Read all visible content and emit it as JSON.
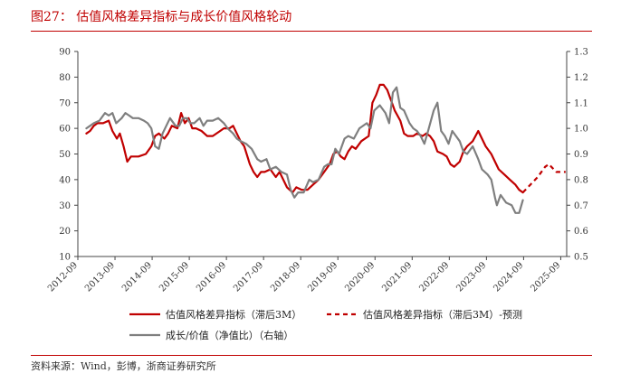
{
  "header": {
    "title": "图27：  估值风格差异指标与成长价值风格轮动"
  },
  "footer": {
    "source": "资料来源：Wind，彭博，浙商证券研究所"
  },
  "colors": {
    "red": "#c00000",
    "gray": "#7f7f7f",
    "rule": "#c00000"
  },
  "chart_data": {
    "type": "line",
    "x_unit": "year_fraction",
    "x_tick_labels": [
      "2012-09",
      "2013-09",
      "2014-09",
      "2015-09",
      "2016-09",
      "2017-09",
      "2018-09",
      "2019-09",
      "2020-09",
      "2021-09",
      "2022-09",
      "2023-09",
      "2024-09",
      "2025-09"
    ],
    "xlim": [
      2012.67,
      2025.83
    ],
    "y_left": {
      "ylim": [
        10,
        90
      ],
      "ticks": [
        "10",
        "20",
        "30",
        "40",
        "50",
        "60",
        "70",
        "80",
        "90"
      ]
    },
    "y_right": {
      "ylim": [
        0.5,
        1.3
      ],
      "ticks": [
        "0.5",
        "0.6",
        "0.7",
        "0.8",
        "0.9",
        "1.0",
        "1.1",
        "1.2",
        "1.3"
      ]
    },
    "series": [
      {
        "name": "估值风格差异指标（滞后3M）",
        "axis": "left",
        "style": "solid",
        "color": "#c00000",
        "points": [
          [
            2012.9,
            58
          ],
          [
            2013.0,
            59
          ],
          [
            2013.1,
            61
          ],
          [
            2013.2,
            62
          ],
          [
            2013.35,
            62
          ],
          [
            2013.5,
            63
          ],
          [
            2013.6,
            59
          ],
          [
            2013.72,
            56
          ],
          [
            2013.8,
            58
          ],
          [
            2013.9,
            53
          ],
          [
            2014.0,
            47
          ],
          [
            2014.1,
            49
          ],
          [
            2014.3,
            49
          ],
          [
            2014.5,
            50
          ],
          [
            2014.65,
            53
          ],
          [
            2014.75,
            57
          ],
          [
            2014.85,
            58
          ],
          [
            2015.0,
            56
          ],
          [
            2015.1,
            58
          ],
          [
            2015.2,
            61
          ],
          [
            2015.35,
            60
          ],
          [
            2015.45,
            66
          ],
          [
            2015.55,
            62
          ],
          [
            2015.65,
            64
          ],
          [
            2015.75,
            60
          ],
          [
            2015.85,
            60
          ],
          [
            2016.0,
            59
          ],
          [
            2016.15,
            57
          ],
          [
            2016.3,
            57
          ],
          [
            2016.5,
            59
          ],
          [
            2016.6,
            60
          ],
          [
            2016.75,
            60
          ],
          [
            2016.85,
            61
          ],
          [
            2016.95,
            58
          ],
          [
            2017.05,
            55
          ],
          [
            2017.15,
            53
          ],
          [
            2017.3,
            46
          ],
          [
            2017.4,
            43
          ],
          [
            2017.5,
            41
          ],
          [
            2017.6,
            43
          ],
          [
            2017.7,
            43
          ],
          [
            2017.85,
            44
          ],
          [
            2018.0,
            41
          ],
          [
            2018.1,
            43
          ],
          [
            2018.2,
            40
          ],
          [
            2018.3,
            37
          ],
          [
            2018.45,
            35
          ],
          [
            2018.55,
            37
          ],
          [
            2018.7,
            36
          ],
          [
            2018.85,
            36
          ],
          [
            2019.0,
            38
          ],
          [
            2019.15,
            40
          ],
          [
            2019.3,
            43
          ],
          [
            2019.45,
            46
          ],
          [
            2019.55,
            50
          ],
          [
            2019.65,
            51
          ],
          [
            2019.75,
            49
          ],
          [
            2019.85,
            48
          ],
          [
            2019.95,
            51
          ],
          [
            2020.05,
            53
          ],
          [
            2020.15,
            52
          ],
          [
            2020.3,
            55
          ],
          [
            2020.5,
            57
          ],
          [
            2020.6,
            70
          ],
          [
            2020.7,
            73
          ],
          [
            2020.8,
            77
          ],
          [
            2020.9,
            77
          ],
          [
            2021.0,
            75
          ],
          [
            2021.1,
            71
          ],
          [
            2021.2,
            67
          ],
          [
            2021.35,
            63
          ],
          [
            2021.45,
            58
          ],
          [
            2021.55,
            57
          ],
          [
            2021.7,
            57
          ],
          [
            2021.8,
            58
          ],
          [
            2021.95,
            57
          ],
          [
            2022.05,
            58
          ],
          [
            2022.15,
            57
          ],
          [
            2022.25,
            55
          ],
          [
            2022.35,
            51
          ],
          [
            2022.5,
            50
          ],
          [
            2022.6,
            49
          ],
          [
            2022.7,
            46
          ],
          [
            2022.8,
            45
          ],
          [
            2022.95,
            47
          ],
          [
            2023.05,
            51
          ],
          [
            2023.15,
            53
          ],
          [
            2023.3,
            55
          ],
          [
            2023.45,
            59
          ],
          [
            2023.55,
            56
          ],
          [
            2023.65,
            53
          ],
          [
            2023.8,
            50
          ],
          [
            2023.9,
            47
          ],
          [
            2024.0,
            44
          ],
          [
            2024.15,
            42
          ],
          [
            2024.3,
            40
          ],
          [
            2024.45,
            38
          ],
          [
            2024.55,
            36
          ],
          [
            2024.65,
            35
          ]
        ]
      },
      {
        "name": "估值风格差异指标（滞后3M）-预测",
        "axis": "left",
        "style": "dashed",
        "color": "#c00000",
        "points": [
          [
            2024.65,
            35
          ],
          [
            2024.85,
            38
          ],
          [
            2025.05,
            41
          ],
          [
            2025.25,
            45
          ],
          [
            2025.35,
            46
          ],
          [
            2025.55,
            43
          ],
          [
            2025.7,
            43
          ],
          [
            2025.8,
            43
          ]
        ]
      },
      {
        "name": "成长/价值（净值比）（右轴）",
        "axis": "right",
        "style": "solid",
        "color": "#7f7f7f",
        "points": [
          [
            2012.9,
            1.0
          ],
          [
            2013.0,
            1.01
          ],
          [
            2013.1,
            1.02
          ],
          [
            2013.25,
            1.03
          ],
          [
            2013.4,
            1.06
          ],
          [
            2013.5,
            1.05
          ],
          [
            2013.6,
            1.06
          ],
          [
            2013.7,
            1.02
          ],
          [
            2013.85,
            1.04
          ],
          [
            2013.95,
            1.06
          ],
          [
            2014.05,
            1.05
          ],
          [
            2014.15,
            1.04
          ],
          [
            2014.3,
            1.04
          ],
          [
            2014.45,
            1.03
          ],
          [
            2014.55,
            1.02
          ],
          [
            2014.65,
            1.0
          ],
          [
            2014.75,
            0.93
          ],
          [
            2014.85,
            0.92
          ],
          [
            2014.95,
            0.98
          ],
          [
            2015.05,
            1.01
          ],
          [
            2015.15,
            1.04
          ],
          [
            2015.3,
            1.01
          ],
          [
            2015.4,
            1.01
          ],
          [
            2015.5,
            1.04
          ],
          [
            2015.6,
            1.04
          ],
          [
            2015.7,
            1.02
          ],
          [
            2015.8,
            1.02
          ],
          [
            2015.95,
            1.04
          ],
          [
            2016.05,
            1.01
          ],
          [
            2016.15,
            1.03
          ],
          [
            2016.3,
            1.03
          ],
          [
            2016.45,
            1.04
          ],
          [
            2016.6,
            1.02
          ],
          [
            2016.7,
            1.0
          ],
          [
            2016.85,
            0.98
          ],
          [
            2016.95,
            0.96
          ],
          [
            2017.05,
            0.95
          ],
          [
            2017.2,
            0.94
          ],
          [
            2017.35,
            0.92
          ],
          [
            2017.5,
            0.88
          ],
          [
            2017.6,
            0.87
          ],
          [
            2017.75,
            0.88
          ],
          [
            2017.85,
            0.84
          ],
          [
            2018.0,
            0.85
          ],
          [
            2018.15,
            0.83
          ],
          [
            2018.3,
            0.82
          ],
          [
            2018.4,
            0.76
          ],
          [
            2018.5,
            0.73
          ],
          [
            2018.6,
            0.75
          ],
          [
            2018.75,
            0.75
          ],
          [
            2018.9,
            0.8
          ],
          [
            2019.0,
            0.79
          ],
          [
            2019.15,
            0.8
          ],
          [
            2019.3,
            0.85
          ],
          [
            2019.4,
            0.86
          ],
          [
            2019.5,
            0.86
          ],
          [
            2019.6,
            0.92
          ],
          [
            2019.7,
            0.9
          ],
          [
            2019.85,
            0.96
          ],
          [
            2019.95,
            0.97
          ],
          [
            2020.1,
            0.96
          ],
          [
            2020.25,
            1.0
          ],
          [
            2020.45,
            1.02
          ],
          [
            2020.55,
            1.0
          ],
          [
            2020.65,
            1.07
          ],
          [
            2020.8,
            1.09
          ],
          [
            2020.95,
            1.06
          ],
          [
            2021.05,
            1.02
          ],
          [
            2021.15,
            1.14
          ],
          [
            2021.25,
            1.16
          ],
          [
            2021.35,
            1.08
          ],
          [
            2021.45,
            1.07
          ],
          [
            2021.6,
            1.02
          ],
          [
            2021.7,
            1.0
          ],
          [
            2021.8,
            0.99
          ],
          [
            2021.9,
            0.97
          ],
          [
            2022.0,
            0.94
          ],
          [
            2022.1,
            0.99
          ],
          [
            2022.25,
            1.07
          ],
          [
            2022.35,
            1.1
          ],
          [
            2022.45,
            0.99
          ],
          [
            2022.55,
            0.97
          ],
          [
            2022.65,
            0.94
          ],
          [
            2022.75,
            0.99
          ],
          [
            2022.85,
            0.97
          ],
          [
            2022.95,
            0.95
          ],
          [
            2023.05,
            0.91
          ],
          [
            2023.15,
            0.9
          ],
          [
            2023.3,
            0.93
          ],
          [
            2023.45,
            0.88
          ],
          [
            2023.55,
            0.84
          ],
          [
            2023.7,
            0.82
          ],
          [
            2023.8,
            0.8
          ],
          [
            2023.9,
            0.73
          ],
          [
            2023.95,
            0.7
          ],
          [
            2024.05,
            0.74
          ],
          [
            2024.2,
            0.71
          ],
          [
            2024.35,
            0.7
          ],
          [
            2024.45,
            0.67
          ],
          [
            2024.55,
            0.67
          ],
          [
            2024.65,
            0.72
          ]
        ]
      }
    ],
    "legend": [
      {
        "label": "估值风格差异指标（滞后3M）",
        "style": "solid",
        "color": "#c00000"
      },
      {
        "label": "估值风格差异指标（滞后3M）-预测",
        "style": "dashed",
        "color": "#c00000"
      },
      {
        "label": "成长/价值（净值比）（右轴）",
        "style": "solid",
        "color": "#7f7f7f"
      }
    ]
  }
}
